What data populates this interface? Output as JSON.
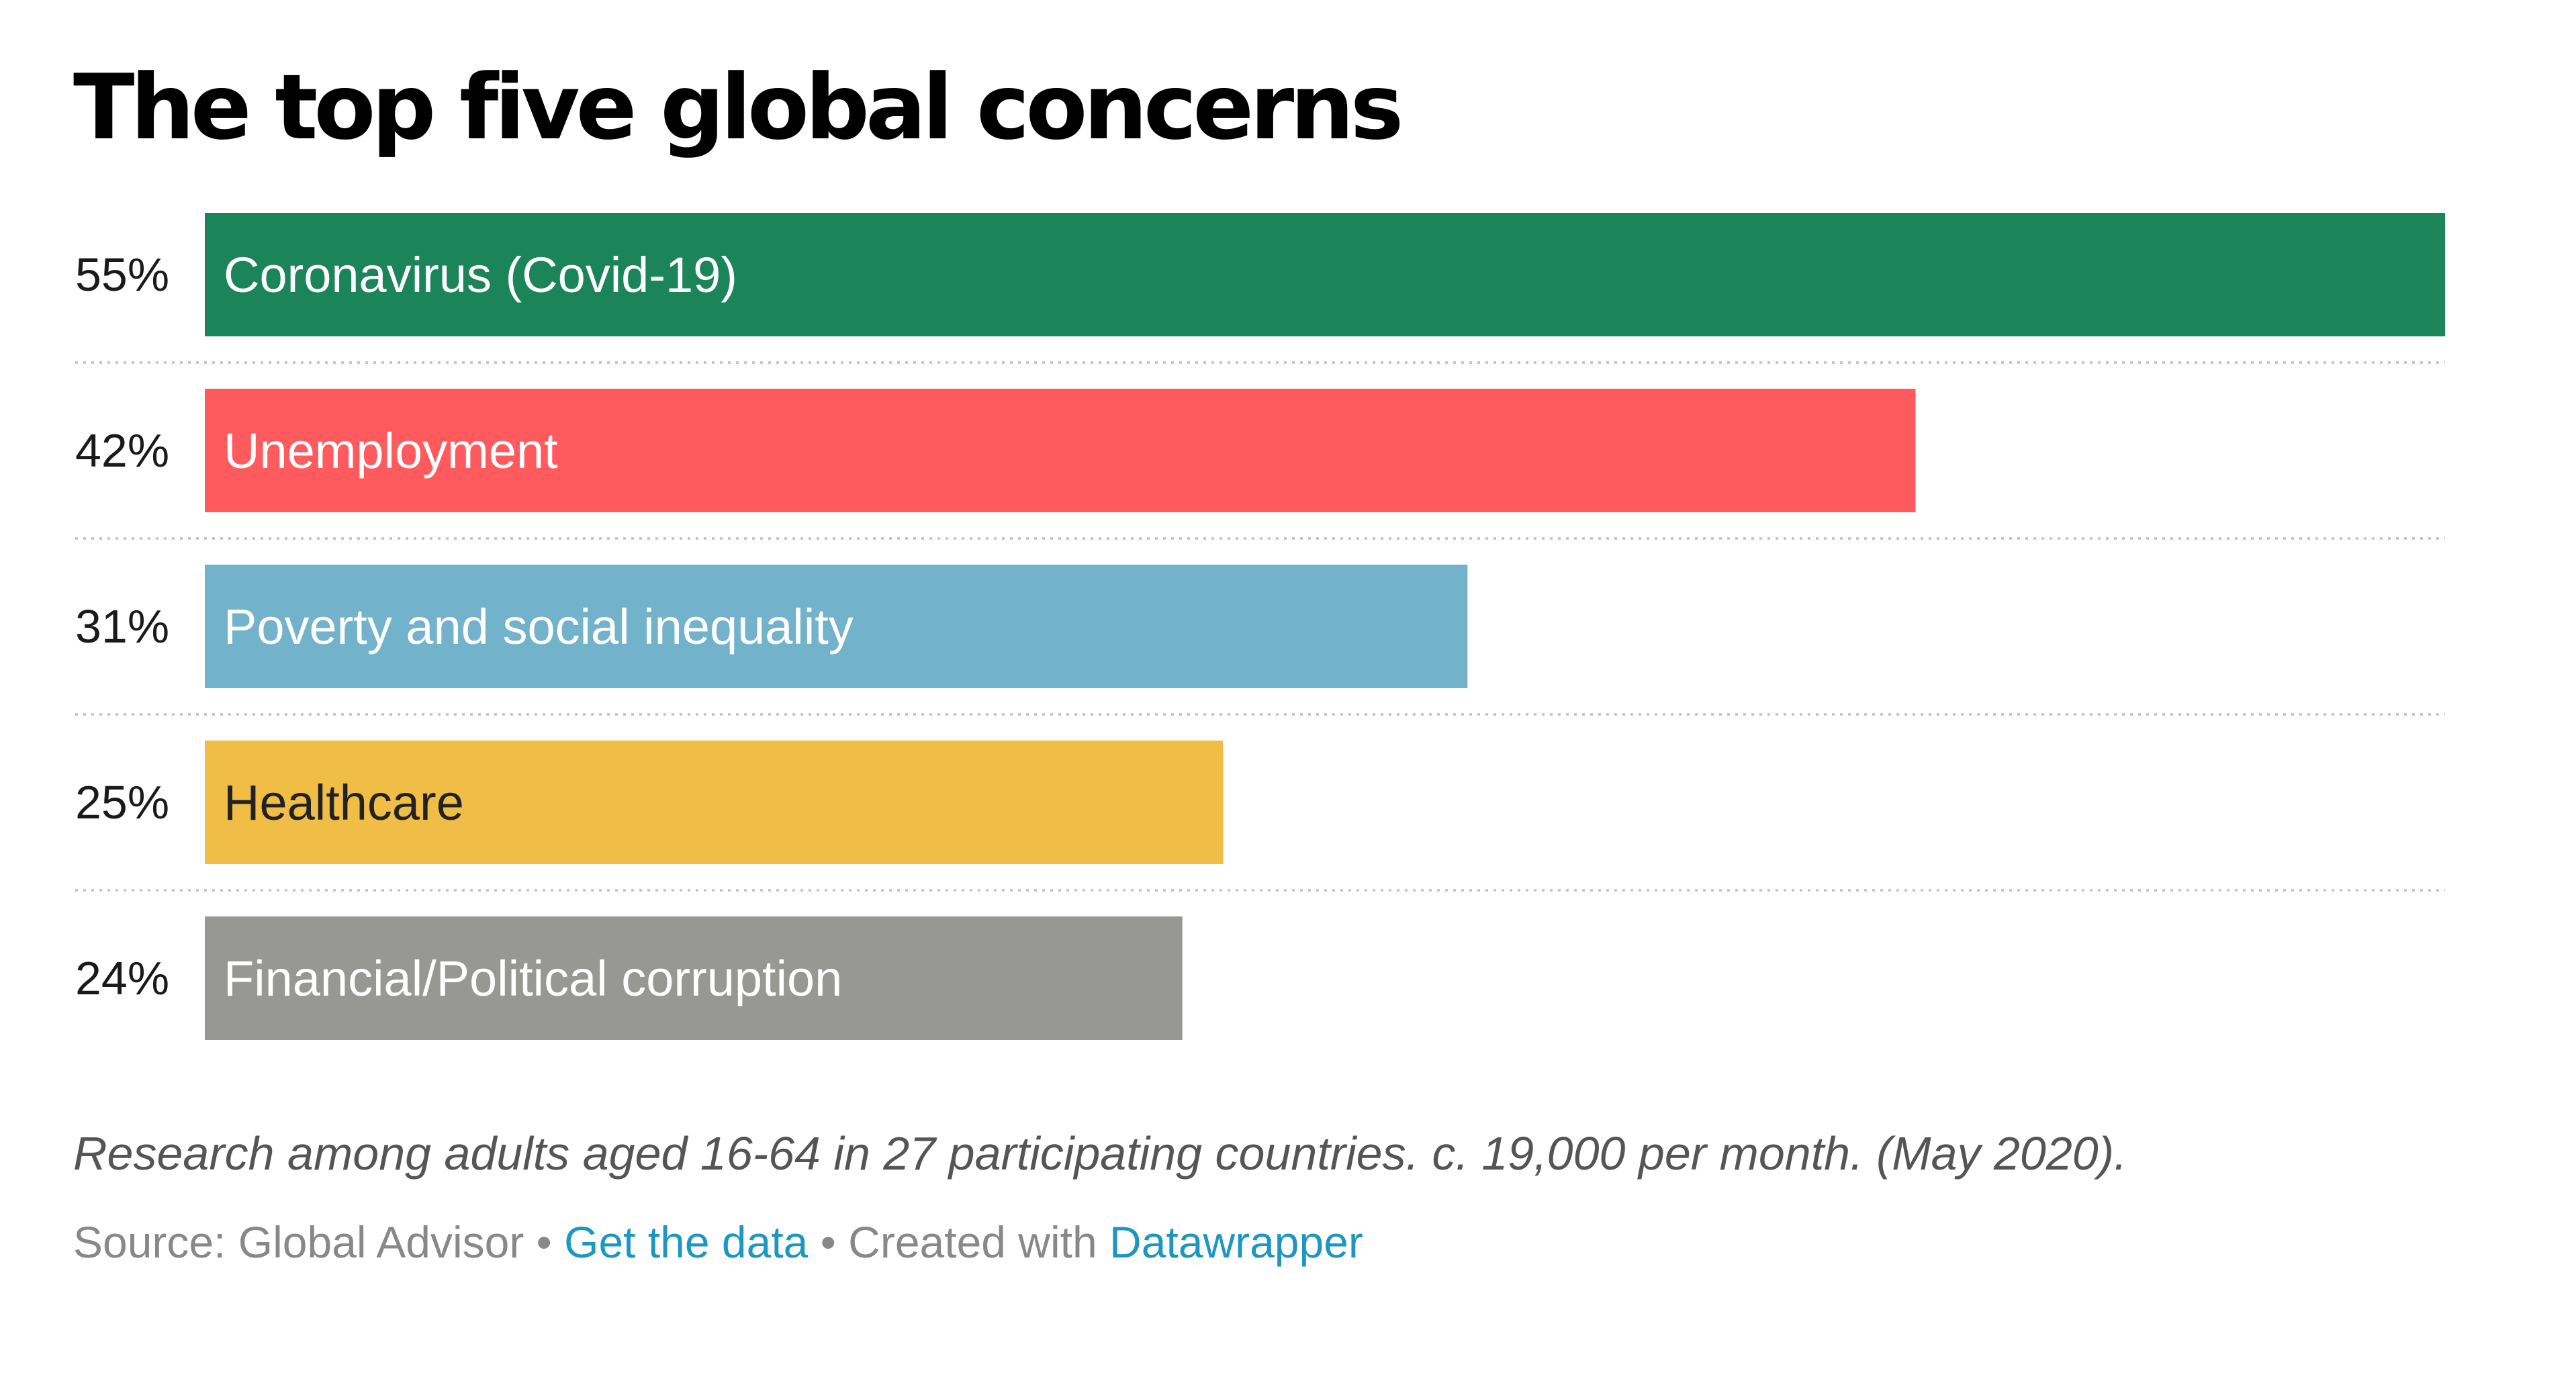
{
  "chart_data": {
    "type": "bar",
    "orientation": "horizontal",
    "title": "The top five global concerns",
    "categories": [
      "Coronavirus (Covid-19)",
      "Unemployment",
      "Poverty and social inequality",
      "Healthcare",
      "Financial/Political corruption"
    ],
    "values": [
      55,
      42,
      31,
      25,
      24
    ],
    "value_labels": [
      "55%",
      "42%",
      "31%",
      "25%",
      "24%"
    ],
    "colors": [
      "#1b8459",
      "#ff5b5f",
      "#72b2ca",
      "#f0be46",
      "#979894"
    ],
    "label_colors": [
      "#ffffff",
      "#ffffff",
      "#ffffff",
      "#222222",
      "#ffffff"
    ],
    "xlim": [
      0,
      55
    ],
    "unit": "%",
    "grid": "dotted separators between rows",
    "legend": "none"
  },
  "notes": "Research among adults aged 16-64 in 27 participating countries. c. 19,000 per month. (May 2020).",
  "footer": {
    "source_label": "Source: Global Advisor",
    "separator": " • ",
    "get_data_label": "Get the data",
    "created_with_label": "Created with",
    "tool_label": "Datawrapper"
  }
}
